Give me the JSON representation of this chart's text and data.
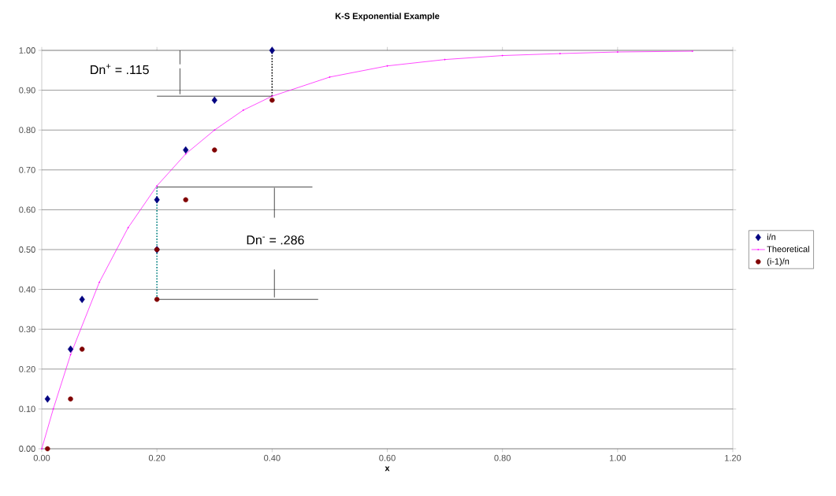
{
  "chart_data": {
    "type": "scatter",
    "title": "K-S Exponential Example",
    "xlabel": "x",
    "xlim": [
      0,
      1.2
    ],
    "ylim": [
      0,
      1
    ],
    "xticks": [
      {
        "value": 0,
        "label": "0.00"
      },
      {
        "value": 0.2,
        "label": "0.20"
      },
      {
        "value": 0.4,
        "label": "0.40"
      },
      {
        "value": 0.6,
        "label": "0.60"
      },
      {
        "value": 0.8,
        "label": "0.80"
      },
      {
        "value": 1.0,
        "label": "1.00"
      },
      {
        "value": 1.2,
        "label": "1.20"
      }
    ],
    "yticks": [
      {
        "value": 0,
        "label": "0.00"
      },
      {
        "value": 0.1,
        "label": "0.10"
      },
      {
        "value": 0.2,
        "label": "0.20"
      },
      {
        "value": 0.3,
        "label": "0.30"
      },
      {
        "value": 0.4,
        "label": "0.40"
      },
      {
        "value": 0.5,
        "label": "0.50"
      },
      {
        "value": 0.6,
        "label": "0.60"
      },
      {
        "value": 0.7,
        "label": "0.70"
      },
      {
        "value": 0.8,
        "label": "0.80"
      },
      {
        "value": 0.9,
        "label": "0.90"
      },
      {
        "value": 1.0,
        "label": "1.00"
      }
    ],
    "grid": "y",
    "legend": "right",
    "series": [
      {
        "name": "i/n",
        "marker": "diamond",
        "color": "#000080",
        "x": [
          0.01,
          0.05,
          0.07,
          0.2,
          0.2,
          0.25,
          0.3,
          0.4
        ],
        "values": [
          0.125,
          0.25,
          0.375,
          0.5,
          0.625,
          0.75,
          0.875,
          1.0
        ]
      },
      {
        "name": "Theoretical",
        "type": "line",
        "marker": "circle",
        "color": "#ff00ff",
        "x": [
          0,
          0.02,
          0.05,
          0.1,
          0.15,
          0.2,
          0.25,
          0.3,
          0.35,
          0.4,
          0.5,
          0.6,
          0.7,
          0.8,
          0.9,
          1.0,
          1.13
        ],
        "values": [
          0,
          0.1,
          0.236,
          0.418,
          0.555,
          0.66,
          0.74,
          0.8,
          0.85,
          0.885,
          0.933,
          0.961,
          0.977,
          0.987,
          0.992,
          0.996,
          0.998
        ]
      },
      {
        "name": "(i-1)/n",
        "marker": "circle",
        "color": "#800000",
        "x": [
          0.01,
          0.05,
          0.07,
          0.2,
          0.2,
          0.25,
          0.3,
          0.4
        ],
        "values": [
          0,
          0.125,
          0.25,
          0.375,
          0.5,
          0.625,
          0.75,
          0.875
        ]
      },
      {
        "type": "line",
        "marker": "none",
        "line_style": "dotted",
        "color": "#000000",
        "x": [
          0.4,
          0.4
        ],
        "values": [
          0.885,
          1.0
        ]
      },
      {
        "type": "line",
        "marker": "none",
        "line_style": "dotted",
        "color": "#008080",
        "x": [
          0.2,
          0.2
        ],
        "values": [
          0.375,
          0.66
        ]
      },
      {
        "type": "line",
        "marker": "none",
        "line_style": "solid",
        "color": "#000000",
        "x": [
          0.2,
          0.4
        ],
        "values": [
          0.885,
          0.885
        ]
      },
      {
        "type": "line",
        "marker": "none",
        "line_style": "solid",
        "color": "#000000",
        "x": [
          0.2,
          0.47
        ],
        "values": [
          0.657,
          0.657
        ]
      },
      {
        "type": "line",
        "marker": "none",
        "line_style": "solid",
        "color": "#000000",
        "x": [
          0.2,
          0.48
        ],
        "values": [
          0.375,
          0.375
        ]
      },
      {
        "type": "line",
        "marker": "none",
        "line_style": "solid",
        "color": "#000000",
        "x": [
          0.24,
          0.24
        ],
        "values": [
          0.965,
          1.0
        ]
      },
      {
        "type": "line",
        "marker": "none",
        "line_style": "solid",
        "color": "#000000",
        "x": [
          0.24,
          0.24
        ],
        "values": [
          0.955,
          0.89
        ]
      },
      {
        "type": "line",
        "marker": "none",
        "line_style": "solid",
        "color": "#000000",
        "x": [
          0.404,
          0.404
        ],
        "values": [
          0.58,
          0.655
        ]
      },
      {
        "type": "line",
        "marker": "none",
        "line_style": "solid",
        "color": "#000000",
        "x": [
          0.404,
          0.404
        ],
        "values": [
          0.45,
          0.38
        ]
      }
    ],
    "annotations": [
      "Dn$^{+}$ = .115",
      "Dn$^{-}$ = .286"
    ]
  }
}
